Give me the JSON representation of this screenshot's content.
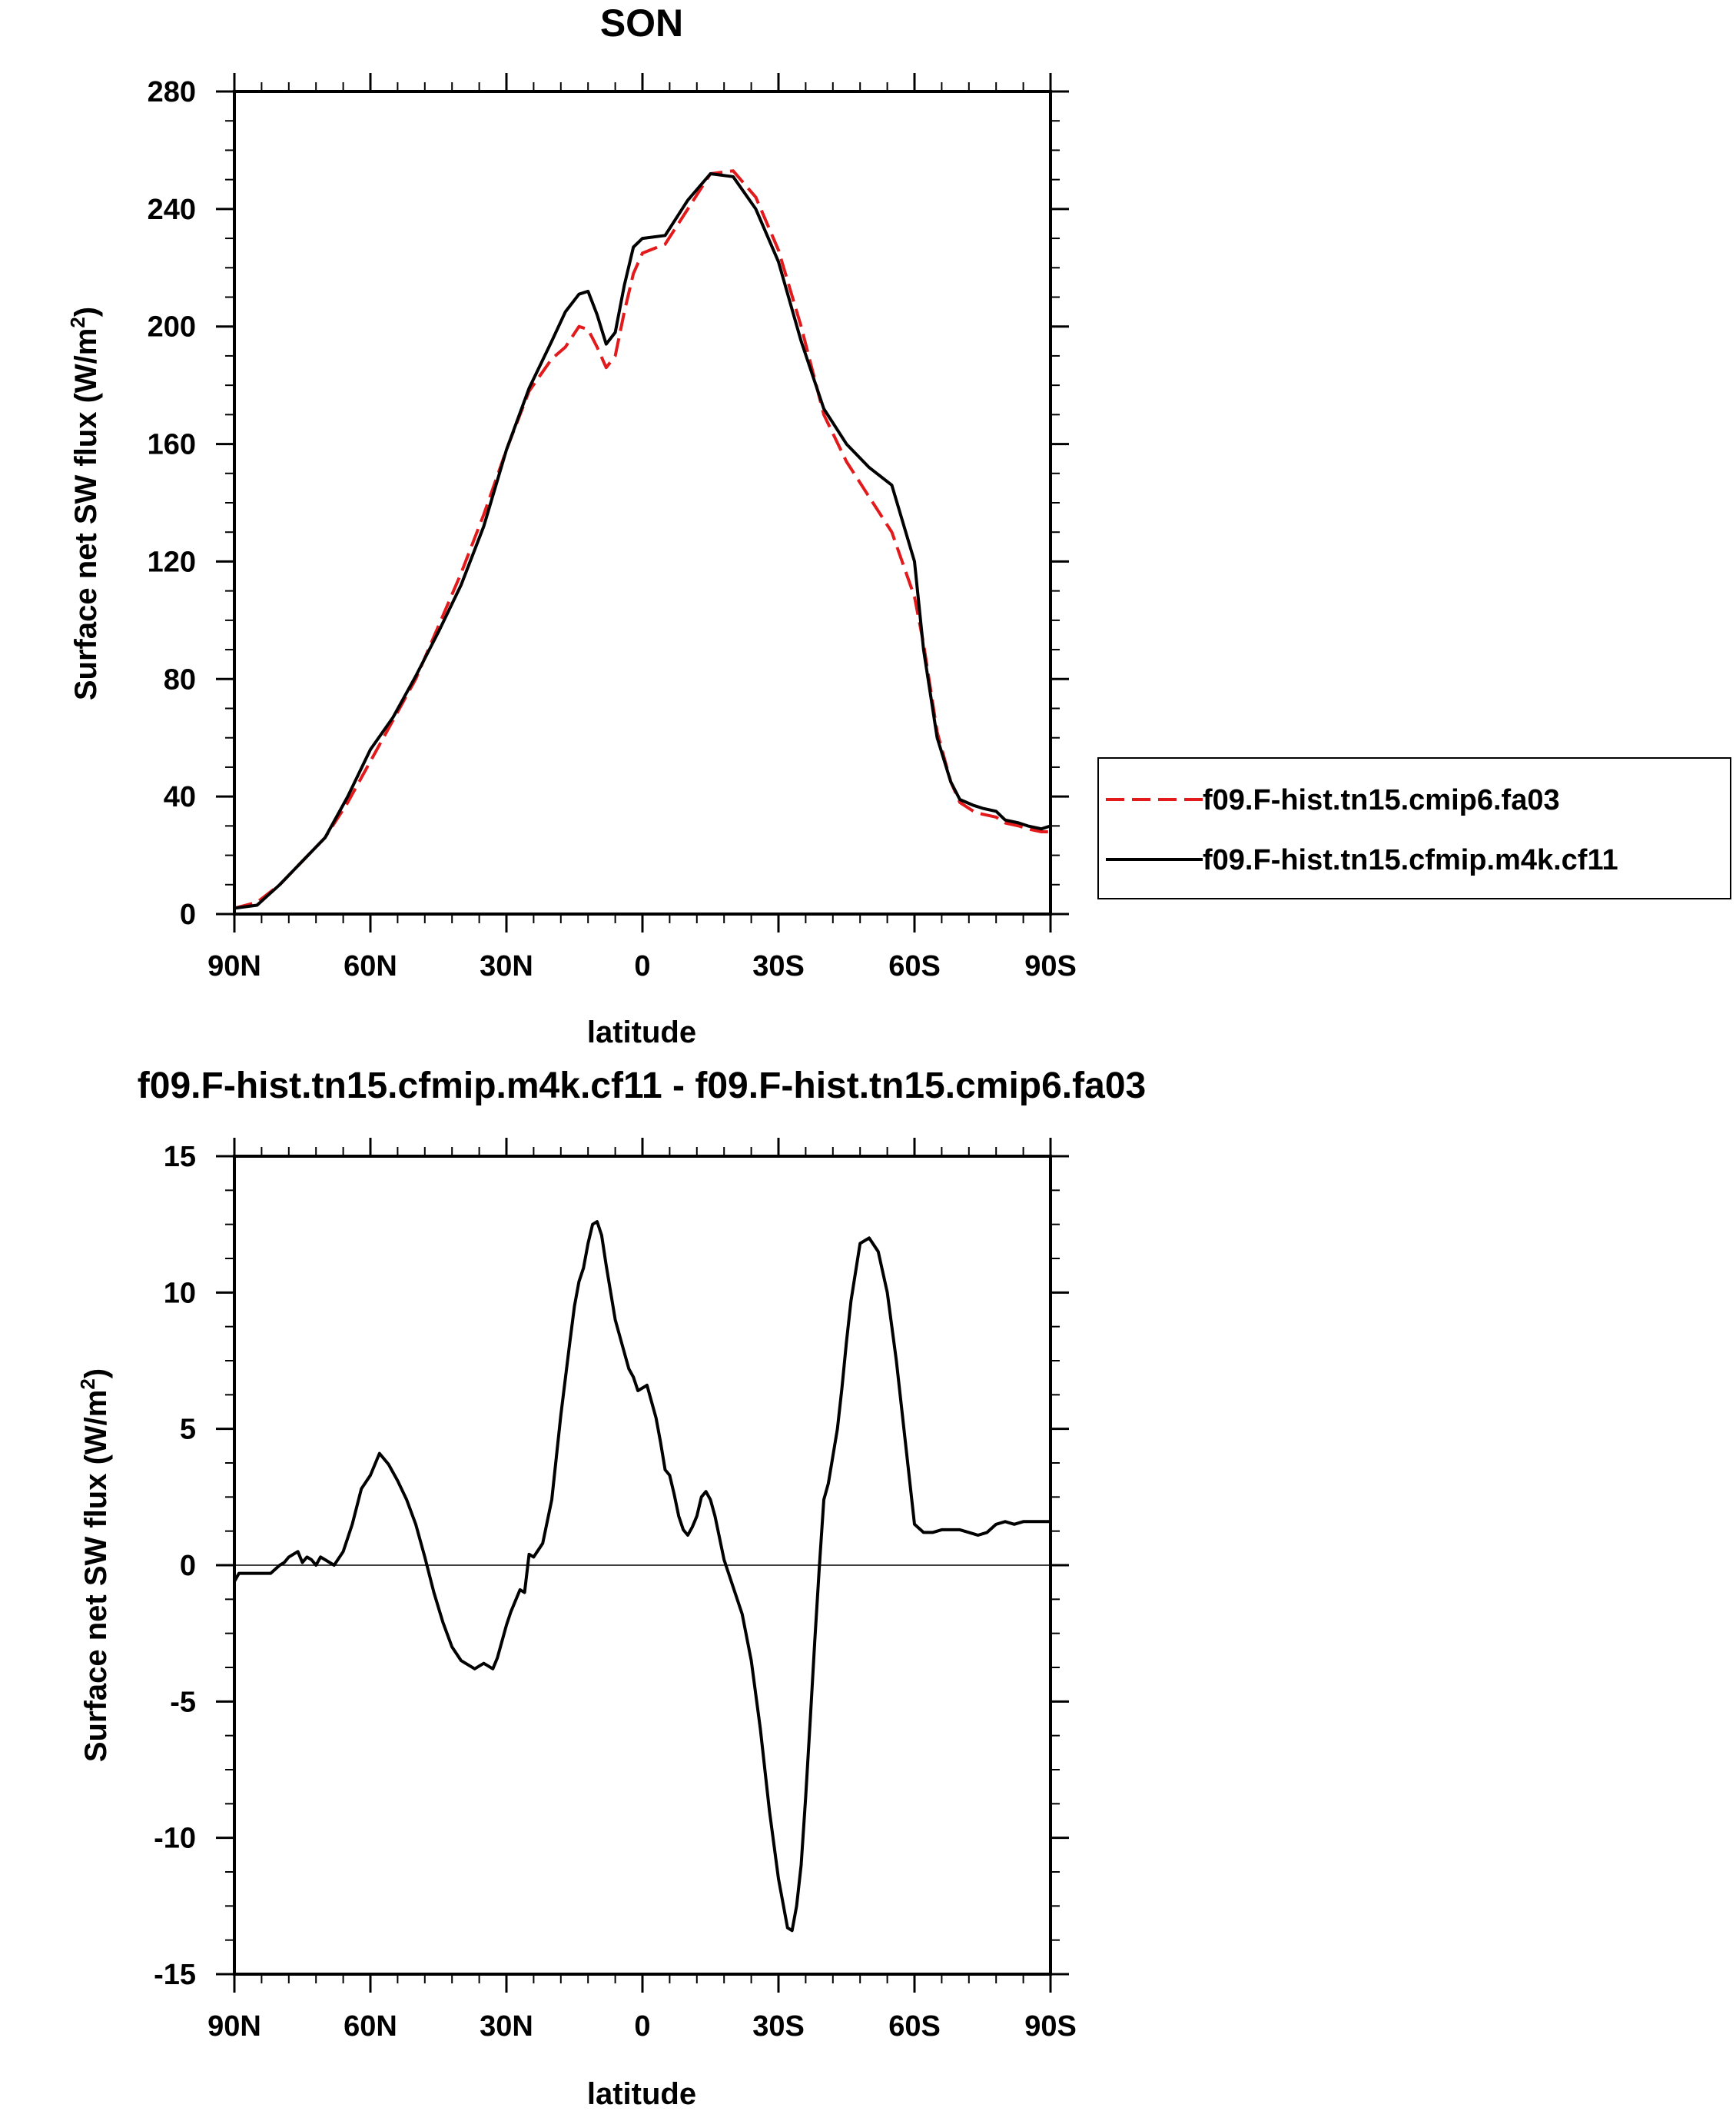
{
  "chart_data": [
    {
      "type": "line",
      "title": "SON",
      "xlabel": "latitude",
      "ylabel": "Surface net SW flux (W/m",
      "ylabel_sup": "2",
      "ylabel_end": ")",
      "x_ticks": [
        "90N",
        "60N",
        "30N",
        "0",
        "30S",
        "60S",
        "90S"
      ],
      "y_ticks": [
        "0",
        "40",
        "80",
        "120",
        "160",
        "200",
        "240",
        "280"
      ],
      "xlim": [
        90,
        -90
      ],
      "ylim": [
        0,
        280
      ],
      "legend_position": "right",
      "series": [
        {
          "name": "f09.F-hist.tn15.cmip6.fa03",
          "color": "#e31a1c",
          "dash": "dashed",
          "x": [
            90,
            85,
            80,
            75,
            70,
            65,
            60,
            55,
            50,
            45,
            40,
            35,
            30,
            25,
            20,
            17,
            14,
            12,
            10,
            8,
            6,
            4,
            2,
            0,
            -5,
            -10,
            -15,
            -20,
            -25,
            -30,
            -35,
            -40,
            -45,
            -50,
            -55,
            -60,
            -62,
            -65,
            -68,
            -70,
            -73,
            -75,
            -78,
            -80,
            -83,
            -85,
            -88,
            -90
          ],
          "y": [
            2,
            4,
            10,
            18,
            26,
            38,
            52,
            66,
            80,
            98,
            116,
            136,
            158,
            178,
            189,
            193,
            200,
            199,
            193,
            186,
            190,
            205,
            218,
            225,
            228,
            240,
            252,
            253,
            244,
            226,
            200,
            170,
            154,
            142,
            130,
            108,
            92,
            62,
            45,
            38,
            35,
            34,
            33,
            31,
            30,
            29,
            28,
            28
          ]
        },
        {
          "name": "f09.F-hist.tn15.cfmip.m4k.cf11",
          "color": "#000000",
          "dash": "solid",
          "x": [
            90,
            85,
            80,
            75,
            70,
            65,
            60,
            55,
            50,
            45,
            40,
            35,
            30,
            25,
            20,
            17,
            14,
            12,
            10,
            8,
            6,
            4,
            2,
            0,
            -5,
            -10,
            -15,
            -20,
            -25,
            -30,
            -35,
            -40,
            -45,
            -50,
            -55,
            -60,
            -62,
            -65,
            -68,
            -70,
            -73,
            -75,
            -78,
            -80,
            -83,
            -85,
            -88,
            -90
          ],
          "y": [
            2,
            3,
            10,
            18,
            26,
            40,
            56,
            67,
            81,
            96,
            112,
            132,
            158,
            179,
            195,
            205,
            211,
            212,
            204,
            194,
            198,
            214,
            227,
            230,
            231,
            243,
            252,
            251,
            240,
            222,
            195,
            172,
            160,
            152,
            146,
            120,
            90,
            60,
            45,
            39,
            37,
            36,
            35,
            32,
            31,
            30,
            29,
            30
          ]
        }
      ]
    },
    {
      "type": "line",
      "title": "f09.F-hist.tn15.cfmip.m4k.cf11 - f09.F-hist.tn15.cmip6.fa03",
      "xlabel": "latitude",
      "ylabel": "Surface net SW flux (W/m",
      "ylabel_sup": "2",
      "ylabel_end": ")",
      "x_ticks": [
        "90N",
        "60N",
        "30N",
        "0",
        "30S",
        "60S",
        "90S"
      ],
      "y_ticks": [
        "-15",
        "-10",
        "-5",
        "0",
        "5",
        "10",
        "15"
      ],
      "xlim": [
        90,
        -90
      ],
      "ylim": [
        -15,
        15
      ],
      "series": [
        {
          "name": "",
          "color": "#000000",
          "dash": "solid",
          "x": [
            90,
            89,
            85,
            82,
            80,
            79,
            78,
            77,
            76,
            75,
            74,
            73,
            72,
            71,
            70,
            68,
            66,
            64,
            62,
            60,
            58,
            56,
            54,
            52,
            50,
            48,
            46,
            44,
            42,
            40,
            39,
            38,
            37,
            36,
            35,
            34,
            33,
            32,
            31,
            30,
            29,
            28,
            27,
            26,
            25,
            24,
            22,
            20,
            18,
            16,
            15,
            14,
            13,
            12,
            11,
            10,
            9,
            8,
            7,
            6,
            5,
            4,
            3,
            2,
            1,
            0,
            -1,
            -2,
            -3,
            -4,
            -5,
            -6,
            -7,
            -8,
            -9,
            -10,
            -11,
            -12,
            -13,
            -14,
            -15,
            -16,
            -17,
            -18,
            -19,
            -20,
            -22,
            -24,
            -26,
            -28,
            -30,
            -31,
            -32,
            -33,
            -34,
            -35,
            -36,
            -37,
            -38,
            -39,
            -40,
            -41,
            -42,
            -43,
            -44,
            -45,
            -46,
            -48,
            -50,
            -52,
            -54,
            -56,
            -58,
            -60,
            -62,
            -64,
            -66,
            -68,
            -70,
            -72,
            -74,
            -76,
            -78,
            -80,
            -82,
            -84,
            -86,
            -88,
            -90
          ],
          "y": [
            -0.6,
            -0.3,
            -0.3,
            -0.3,
            0,
            0.1,
            0.3,
            0.4,
            0.5,
            0.1,
            0.3,
            0.2,
            0,
            0.3,
            0.2,
            0,
            0.5,
            1.5,
            2.8,
            3.3,
            4.1,
            3.7,
            3.1,
            2.4,
            1.5,
            0.3,
            -1,
            -2.1,
            -3,
            -3.5,
            -3.6,
            -3.7,
            -3.8,
            -3.7,
            -3.6,
            -3.7,
            -3.8,
            -3.4,
            -2.8,
            -2.2,
            -1.7,
            -1.3,
            -0.9,
            -1,
            0.4,
            0.3,
            0.8,
            2.4,
            5.5,
            8.2,
            9.5,
            10.4,
            10.9,
            11.8,
            12.5,
            12.6,
            12.1,
            11,
            10,
            9,
            8.4,
            7.8,
            7.2,
            6.9,
            6.4,
            6.5,
            6.6,
            6,
            5.4,
            4.5,
            3.5,
            3.3,
            2.6,
            1.8,
            1.3,
            1.1,
            1.4,
            1.8,
            2.5,
            2.7,
            2.4,
            1.8,
            1,
            0.2,
            -0.3,
            -0.8,
            -1.8,
            -3.5,
            -6,
            -9,
            -11.5,
            -12.4,
            -13.3,
            -13.4,
            -12.5,
            -11,
            -8.5,
            -5.7,
            -2.8,
            -0.1,
            2.4,
            3,
            4,
            5,
            6.5,
            8.2,
            9.7,
            11.8,
            12,
            11.5,
            10,
            7.5,
            4.5,
            1.5,
            1.2,
            1.2,
            1.3,
            1.3,
            1.3,
            1.2,
            1.1,
            1.2,
            1.5,
            1.6,
            1.5,
            1.6,
            1.6,
            1.6,
            1.6
          ]
        }
      ]
    }
  ]
}
